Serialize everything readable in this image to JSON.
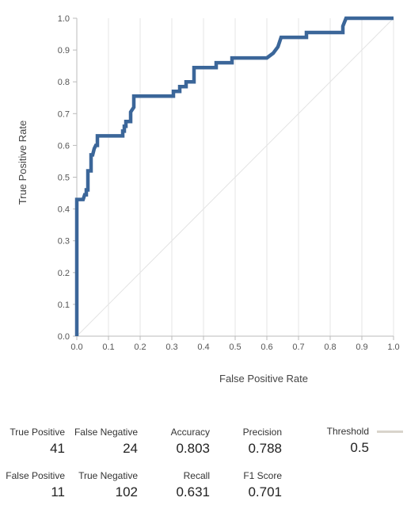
{
  "chart_data": {
    "type": "line",
    "xlabel": "False Positive Rate",
    "ylabel": "True Positive Rate",
    "xlim": [
      0,
      1
    ],
    "ylim": [
      0,
      1
    ],
    "x_ticks": [
      "0.0",
      "0.1",
      "0.2",
      "0.3",
      "0.4",
      "0.5",
      "0.6",
      "0.7",
      "0.8",
      "0.9",
      "1.0"
    ],
    "y_ticks": [
      "0.0",
      "0.1",
      "0.2",
      "0.3",
      "0.4",
      "0.5",
      "0.6",
      "0.7",
      "0.8",
      "0.9",
      "1.0"
    ],
    "grid": "vertical",
    "series": [
      {
        "color": "#3b6699",
        "points": [
          [
            0,
            0
          ],
          [
            0,
            0.43
          ],
          [
            0.02,
            0.43
          ],
          [
            0.025,
            0.445
          ],
          [
            0.03,
            0.445
          ],
          [
            0.03,
            0.46
          ],
          [
            0.035,
            0.46
          ],
          [
            0.035,
            0.52
          ],
          [
            0.045,
            0.52
          ],
          [
            0.045,
            0.57
          ],
          [
            0.05,
            0.57
          ],
          [
            0.055,
            0.59
          ],
          [
            0.06,
            0.6
          ],
          [
            0.065,
            0.6
          ],
          [
            0.065,
            0.63
          ],
          [
            0.145,
            0.63
          ],
          [
            0.145,
            0.645
          ],
          [
            0.15,
            0.645
          ],
          [
            0.15,
            0.66
          ],
          [
            0.155,
            0.66
          ],
          [
            0.155,
            0.675
          ],
          [
            0.17,
            0.675
          ],
          [
            0.17,
            0.705
          ],
          [
            0.18,
            0.72
          ],
          [
            0.18,
            0.755
          ],
          [
            0.305,
            0.755
          ],
          [
            0.305,
            0.77
          ],
          [
            0.325,
            0.77
          ],
          [
            0.325,
            0.785
          ],
          [
            0.345,
            0.785
          ],
          [
            0.345,
            0.8
          ],
          [
            0.37,
            0.8
          ],
          [
            0.37,
            0.845
          ],
          [
            0.44,
            0.845
          ],
          [
            0.44,
            0.86
          ],
          [
            0.49,
            0.86
          ],
          [
            0.49,
            0.875
          ],
          [
            0.6,
            0.875
          ],
          [
            0.62,
            0.89
          ],
          [
            0.635,
            0.91
          ],
          [
            0.645,
            0.94
          ],
          [
            0.725,
            0.94
          ],
          [
            0.725,
            0.955
          ],
          [
            0.84,
            0.955
          ],
          [
            0.84,
            0.975
          ],
          [
            0.85,
            1.0
          ],
          [
            1.0,
            1.0
          ]
        ]
      }
    ],
    "reference_line": {
      "color": "#e3e3e3",
      "points": [
        [
          0,
          0
        ],
        [
          1,
          1
        ]
      ]
    }
  },
  "metrics": {
    "true_positive": {
      "label": "True Positive",
      "value": "41"
    },
    "false_negative": {
      "label": "False Negative",
      "value": "24"
    },
    "false_positive": {
      "label": "False Positive",
      "value": "11"
    },
    "true_negative": {
      "label": "True Negative",
      "value": "102"
    },
    "accuracy": {
      "label": "Accuracy",
      "value": "0.803"
    },
    "precision": {
      "label": "Precision",
      "value": "0.788"
    },
    "recall": {
      "label": "Recall",
      "value": "0.631"
    },
    "f1_score": {
      "label": "F1 Score",
      "value": "0.701"
    },
    "threshold": {
      "label": "Threshold",
      "value": "0.5",
      "color": "#d9d4cc"
    }
  }
}
